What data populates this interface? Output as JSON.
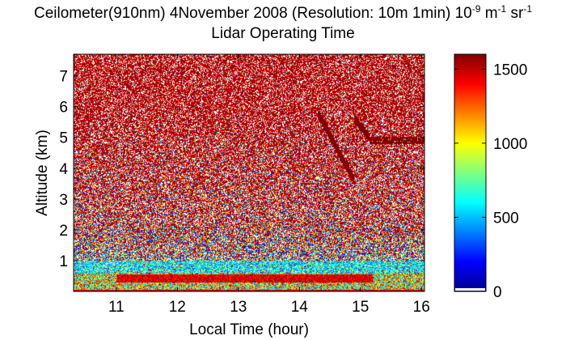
{
  "chart_data": {
    "type": "heatmap",
    "title": {
      "line1": "Ceilometer(910nm) 4November 2008 (Resolution: 10m 1min) 10",
      "unit_exp_1": "-9",
      "unit_mid": " m",
      "unit_exp_2": "-1",
      "unit_sr": " sr",
      "unit_exp_3": "-1",
      "line2": "Lidar Operating Time"
    },
    "xlabel": "Local Time (hour)",
    "ylabel": "Altitude (km)",
    "xlim": [
      10.3,
      16.05
    ],
    "ylim": [
      0,
      7.7
    ],
    "xticks": [
      11,
      12,
      13,
      14,
      15,
      16
    ],
    "yticks": [
      1,
      2,
      3,
      4,
      5,
      6,
      7
    ],
    "colorbar": {
      "range": [
        0,
        1600
      ],
      "ticks": [
        0,
        500,
        1000,
        1500
      ],
      "colormap": [
        "#00008f",
        "#0000ff",
        "#0080ff",
        "#00ffff",
        "#80ff80",
        "#ffff00",
        "#ff8000",
        "#ff0000",
        "#800000"
      ]
    },
    "features": [
      {
        "name": "surface aerosol layer",
        "time_range": [
          10.3,
          16.05
        ],
        "altitude_range_km": [
          0,
          0.6
        ],
        "value_range": [
          400,
          1600
        ]
      },
      {
        "name": "elevated aerosol band",
        "time_range": [
          11.0,
          15.2
        ],
        "altitude_range_km": [
          0.3,
          0.55
        ],
        "value_range": [
          1300,
          1600
        ]
      },
      {
        "name": "cloud trail A",
        "time_range": [
          14.3,
          14.9
        ],
        "altitude_range_km": [
          3.6,
          5.8
        ],
        "value": 1600
      },
      {
        "name": "cloud trail B",
        "time_range": [
          14.9,
          16.05
        ],
        "altitude_range_km": [
          4.8,
          5.0
        ],
        "value": 1600
      },
      {
        "name": "noise background",
        "time_range": [
          10.3,
          16.05
        ],
        "altitude_range_km": [
          1.5,
          7.7
        ],
        "value_range": [
          0,
          1600
        ]
      }
    ]
  }
}
